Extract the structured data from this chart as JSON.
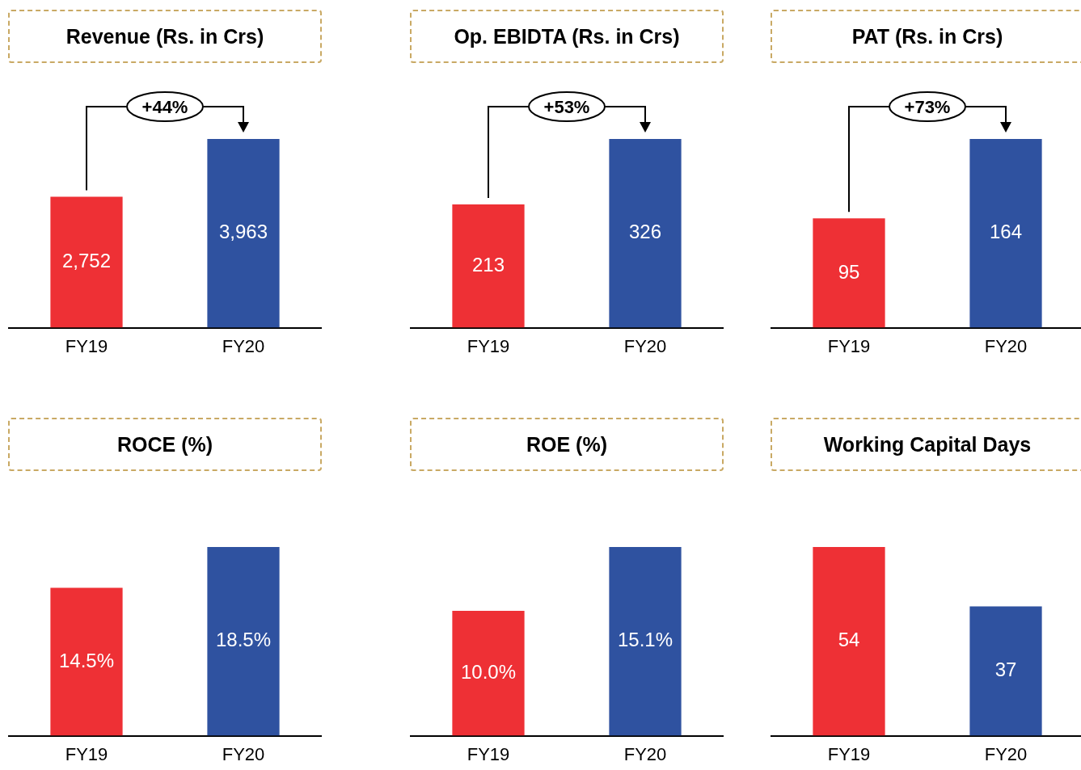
{
  "chart_data": [
    {
      "type": "bar",
      "title": "Revenue (Rs. in Crs)",
      "categories": [
        "FY19",
        "FY20"
      ],
      "values": [
        2752,
        3963
      ],
      "colors": [
        "#ee3035",
        "#2f52a0"
      ],
      "value_labels": [
        "2,752",
        "3,963"
      ],
      "annotations": [
        "+44%"
      ]
    },
    {
      "type": "bar",
      "title": "Op. EBIDTA (Rs. in Crs)",
      "categories": [
        "FY19",
        "FY20"
      ],
      "values": [
        213,
        326
      ],
      "colors": [
        "#ee3035",
        "#2f52a0"
      ],
      "value_labels": [
        "213",
        "326"
      ],
      "annotations": [
        "+53%"
      ]
    },
    {
      "type": "bar",
      "title": "PAT (Rs. in Crs)",
      "categories": [
        "FY19",
        "FY20"
      ],
      "values": [
        95,
        164
      ],
      "colors": [
        "#ee3035",
        "#2f52a0"
      ],
      "value_labels": [
        "95",
        "164"
      ],
      "annotations": [
        "+73%"
      ]
    },
    {
      "type": "bar",
      "title": "ROCE (%)",
      "categories": [
        "FY19",
        "FY20"
      ],
      "values": [
        14.5,
        18.5
      ],
      "colors": [
        "#ee3035",
        "#2f52a0"
      ],
      "value_labels": [
        "14.5%",
        "18.5%"
      ]
    },
    {
      "type": "bar",
      "title": "ROE (%)",
      "categories": [
        "FY19",
        "FY20"
      ],
      "values": [
        10.0,
        15.1
      ],
      "colors": [
        "#ee3035",
        "#2f52a0"
      ],
      "value_labels": [
        "10.0%",
        "15.1%"
      ]
    },
    {
      "type": "bar",
      "title": "Working Capital Days",
      "categories": [
        "FY19",
        "FY20"
      ],
      "values": [
        54,
        37
      ],
      "colors": [
        "#ee3035",
        "#2f52a0"
      ],
      "value_labels": [
        "54",
        "37"
      ]
    }
  ]
}
